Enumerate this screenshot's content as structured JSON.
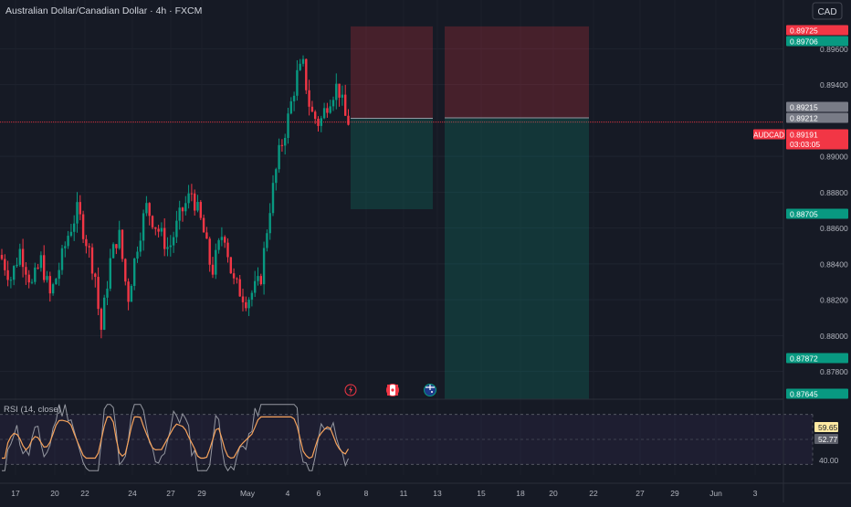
{
  "header": {
    "symbol_title": "Australian Dollar/Canadian Dollar · 4h · FXCM",
    "currency": "CAD"
  },
  "price_axis": {
    "ticks": [
      "0.89600",
      "0.89400",
      "0.89000",
      "0.88800",
      "0.88600",
      "0.88400",
      "0.88200",
      "0.88000",
      "0.87800"
    ],
    "labels": [
      {
        "text": "0.89725",
        "color": "#f23645"
      },
      {
        "text": "0.89706",
        "color": "#089981"
      },
      {
        "text": "0.89215",
        "color": "#787b86"
      },
      {
        "text": "0.89212",
        "color": "#787b86"
      },
      {
        "text": "0.89191",
        "color": "#f23645",
        "sub": "03:03:05",
        "tag": "AUDCAD"
      },
      {
        "text": "0.88705",
        "color": "#089981"
      },
      {
        "text": "0.87872",
        "color": "#089981"
      },
      {
        "text": "0.87645",
        "color": "#089981"
      }
    ]
  },
  "time_axis": [
    "17",
    "20",
    "22",
    "24",
    "27",
    "29",
    "May",
    "4",
    "6",
    "8",
    "11",
    "13",
    "15",
    "18",
    "20",
    "22",
    "27",
    "29",
    "Jun",
    "3"
  ],
  "rsi": {
    "title": "RSI (14, close)",
    "value1": "59.65",
    "value2": "52.77",
    "tick": "40.00"
  },
  "event_icons": [
    "lightning-event-icon",
    "canada-flag-event-icon",
    "australia-flag-event-icon"
  ],
  "colors": {
    "bull": "#089981",
    "bear": "#f23645",
    "background": "#161a25",
    "rsi_line": "#9598a1",
    "rsi_ma": "#f7a35c"
  },
  "chart_data": {
    "type": "candlestick",
    "title": "Australian Dollar/Canadian Dollar · 4h · FXCM",
    "ylim": [
      0.8765,
      0.8975
    ],
    "current_price": 0.89191,
    "trade_boxes": [
      {
        "entry": 0.89212,
        "stop": 0.89725,
        "target": 0.88705
      },
      {
        "entry": 0.89215,
        "stop": 0.89725,
        "target": 0.87645
      }
    ],
    "rsi_ylim": [
      20,
      80
    ]
  }
}
